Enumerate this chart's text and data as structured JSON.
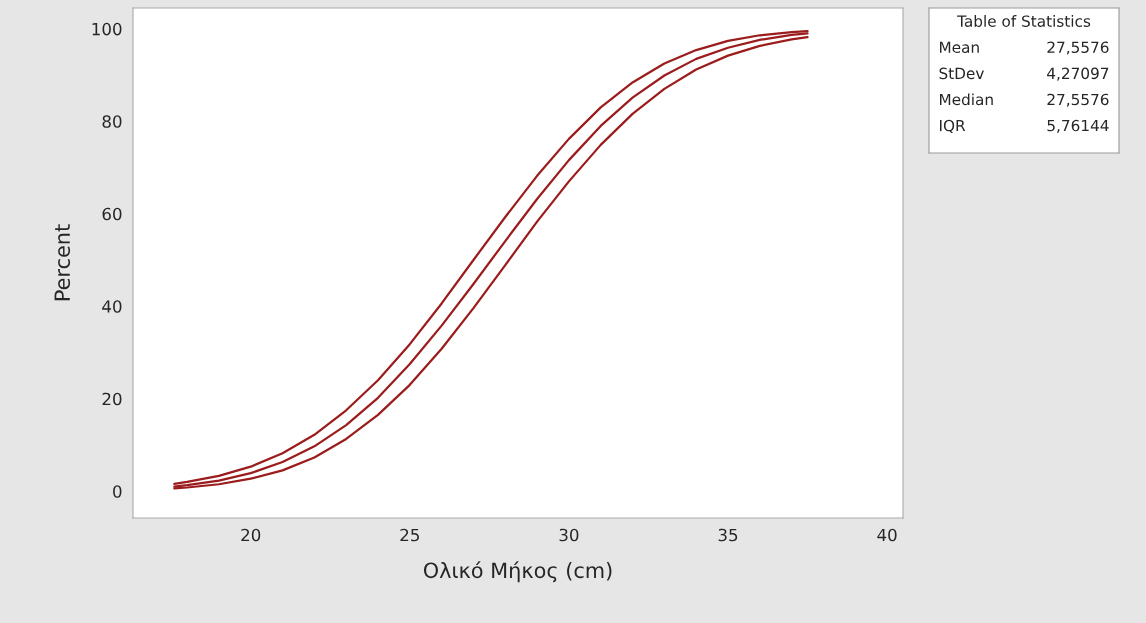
{
  "chart_data": {
    "type": "line",
    "xlabel": "Ολικό Μήκος (cm)",
    "ylabel": "Percent",
    "x": [
      17.6,
      18,
      19,
      20,
      21,
      22,
      23,
      24,
      25,
      26,
      27,
      28,
      29,
      30,
      31,
      32,
      33,
      34,
      35,
      36,
      37,
      37.5
    ],
    "series": [
      {
        "color": "#9b1c1c",
        "values": [
          1.6,
          2.0,
          3.3,
          5.3,
          8.2,
          12.2,
          17.5,
          24.0,
          31.8,
          40.6,
          50.0,
          59.3,
          68.2,
          76.2,
          83.0,
          88.4,
          92.5,
          95.4,
          97.4,
          98.6,
          99.3,
          99.5
        ]
      },
      {
        "color": "#9b1c1c",
        "values": [
          1.0,
          1.3,
          2.3,
          3.9,
          6.3,
          9.7,
          14.3,
          20.2,
          27.5,
          35.8,
          44.8,
          54.1,
          63.2,
          71.6,
          79.0,
          85.1,
          89.9,
          93.5,
          95.9,
          97.6,
          98.7,
          99.0
        ]
      },
      {
        "color": "#9b1c1c",
        "values": [
          0.6,
          0.8,
          1.5,
          2.7,
          4.5,
          7.3,
          11.3,
          16.5,
          23.0,
          30.8,
          39.6,
          48.9,
          58.3,
          67.0,
          74.9,
          81.6,
          87.0,
          91.2,
          94.2,
          96.3,
          97.7,
          98.2
        ]
      }
    ],
    "xlim": [
      16.3,
      40.5
    ],
    "ylim": [
      -5.8,
      104.5
    ],
    "xticks": [
      20,
      25,
      30,
      35,
      40
    ],
    "yticks": [
      0,
      20,
      40,
      60,
      80,
      100
    ],
    "grid": false,
    "marker": "none",
    "line_style": "solid",
    "annotations": [
      "Table of Statistics",
      "Mean",
      "27,5576",
      "StDev",
      "4,27097",
      "Median",
      "27,5576",
      "IQR",
      "5,76144"
    ]
  }
}
